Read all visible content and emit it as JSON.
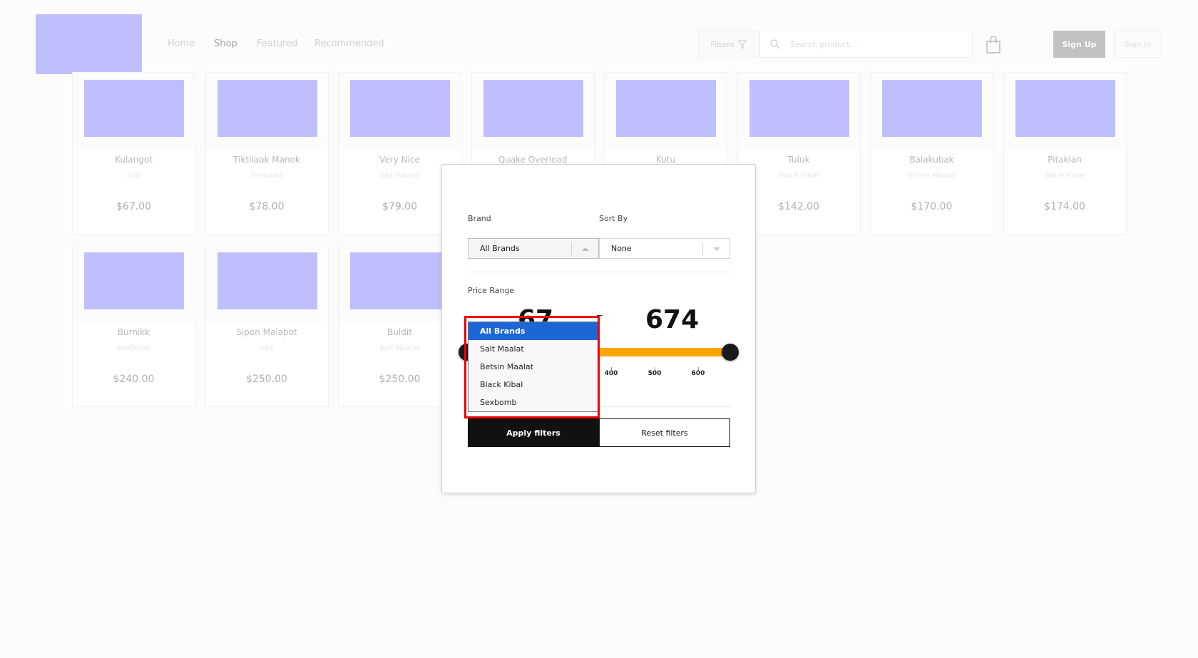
{
  "header": {
    "nav": [
      "Home",
      "Shop",
      "Featured",
      "Recommended"
    ],
    "active_nav": "Shop",
    "filters_label": "Filters",
    "search_placeholder": "Search product...",
    "sign_up": "Sign Up",
    "sign_in": "Sign In"
  },
  "products": [
    {
      "name": "Kulangot",
      "brand": "Salt",
      "price": "$67.00"
    },
    {
      "name": "Tiktilaok Manok",
      "brand": "Sexbomb",
      "price": "$78.00"
    },
    {
      "name": "Very Nice",
      "brand": "Salt maalat",
      "price": "$79.00"
    },
    {
      "name": "Quake Overload",
      "brand": "",
      "price": ""
    },
    {
      "name": "Kutu",
      "brand": "",
      "price": ""
    },
    {
      "name": "Tuluk",
      "brand": "Black Kibal",
      "price": "$142.00"
    },
    {
      "name": "Balakubak",
      "brand": "Betsin Maalat",
      "price": "$170.00"
    },
    {
      "name": "Pitaklan",
      "brand": "Black Kibal",
      "price": "$174.00"
    },
    {
      "name": "Burnikk",
      "brand": "Sexbomb",
      "price": "$240.00"
    },
    {
      "name": "Sipon Malapot",
      "brand": "salt",
      "price": "$250.00"
    },
    {
      "name": "Buldit",
      "brand": "Salt Maalat",
      "price": "$250.00"
    }
  ],
  "filter_modal": {
    "brand_label": "Brand",
    "brand_value": "All Brands",
    "sort_label": "Sort By",
    "sort_value": "None",
    "price_label": "Price Range",
    "price_min": "67",
    "price_max": "674",
    "ticks": [
      "400",
      "500",
      "600"
    ],
    "apply": "Apply filters",
    "reset": "Reset filters",
    "brand_options": [
      "All Brands",
      "Salt Maalat",
      "Betsin Maalat",
      "Black Kibal",
      "Sexbomb"
    ],
    "selected_option": "All Brands"
  },
  "colors": {
    "accent": "#ffa500",
    "selected": "#1b67d6",
    "placeholder": "#c0bffd",
    "highlight": "#ee0000"
  }
}
